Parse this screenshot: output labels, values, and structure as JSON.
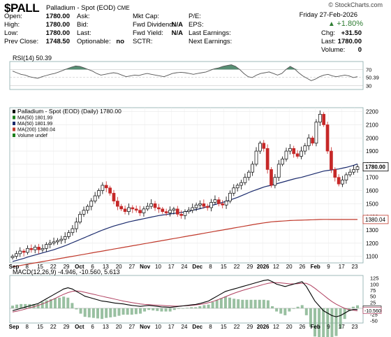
{
  "header": {
    "ticker": "$PALL",
    "name": "Palladium - Spot (EOD)",
    "exchange": "CME",
    "watermark": "© StockCharts.com",
    "date": "Friday  27-Feb-2026",
    "change_pct": "+1.80%",
    "change_pct_value": 1.8,
    "left_rows": [
      {
        "label": "Open:",
        "value": "1780.00"
      },
      {
        "label": "High:",
        "value": "1780.00"
      },
      {
        "label": "Low:",
        "value": "1780.00"
      },
      {
        "label": "Prev Close:",
        "value": "1748.50"
      }
    ],
    "mid1_rows": [
      {
        "label": "Ask:",
        "value": ""
      },
      {
        "label": "Bid:",
        "value": ""
      },
      {
        "label": "Last:",
        "value": ""
      },
      {
        "label": "Optionable:",
        "value": "no"
      }
    ],
    "mid2_rows": [
      {
        "label": "Mkt Cap:",
        "value": ""
      },
      {
        "label": "Fwd Dividend:",
        "value": "N/A"
      },
      {
        "label": "Fwd Yield:",
        "value": "N/A"
      },
      {
        "label": "SCTR:",
        "value": ""
      }
    ],
    "mid3_rows": [
      {
        "label": "P/E:",
        "value": ""
      },
      {
        "label": "EPS:",
        "value": ""
      },
      {
        "label": "Last Earnings:",
        "value": ""
      },
      {
        "label": "Next Earnings:",
        "value": ""
      }
    ],
    "right_rows": [
      {
        "label": "Chg:",
        "value": "+31.50"
      },
      {
        "label": "Last:",
        "value": "1780.00"
      },
      {
        "label": "Volume:",
        "value": "0"
      }
    ]
  },
  "rsi": {
    "label": "RSI(14) 50.39",
    "current": "50.39",
    "ticks": [
      "70",
      "50.39",
      "30"
    ],
    "values": [
      66,
      62,
      58,
      56,
      52,
      50,
      48,
      52,
      55,
      58,
      60,
      64,
      68,
      72,
      76,
      79,
      78,
      74,
      70,
      66,
      60,
      56,
      58,
      60,
      62,
      60,
      56,
      52,
      54,
      56,
      55,
      58,
      60,
      58,
      56,
      54,
      52,
      56,
      60,
      62,
      63,
      62,
      60,
      58,
      60,
      62,
      64,
      68,
      72,
      74,
      78,
      80,
      82,
      78,
      70,
      60,
      52,
      50,
      56,
      60,
      62,
      64,
      60,
      56,
      60,
      70,
      78,
      72,
      62,
      54,
      48,
      42,
      46,
      52,
      56,
      58,
      54,
      52,
      54,
      56,
      54,
      50,
      52
    ]
  },
  "price": {
    "legend": [
      {
        "text": "Palladium - Spot (EOD) (Daily) 1780.00",
        "color": "#000000"
      },
      {
        "text": "MA(50) 1801.99",
        "color": "#1a7f1a"
      },
      {
        "text": "MA(50) 1801.99",
        "color": "#1a2a6c"
      },
      {
        "text": "MA(200) 1380.04",
        "color": "#c0392b"
      },
      {
        "text": "Volume undef",
        "color": "#1a7f1a"
      }
    ],
    "yticks": [
      "2200",
      "2100",
      "2000",
      "1900",
      "1800",
      "1700",
      "1600",
      "1500",
      "1400",
      "1300",
      "1200",
      "1100"
    ],
    "last_label": "1780.00",
    "ma200_label": "1380.04"
  },
  "xaxis": [
    "Sep",
    "8",
    "15",
    "22",
    "29",
    "Oct",
    "6",
    "13",
    "20",
    "27",
    "Nov",
    "10",
    "17",
    "24",
    "Dec",
    "8",
    "15",
    "22",
    "29",
    "2026",
    "12",
    "20",
    "26",
    "Feb",
    "9",
    "17",
    "23"
  ],
  "macd": {
    "label": "MACD(12,26,9) -4.946, -10.560, 5.613",
    "ticks": [
      "125",
      "100",
      "75",
      "50",
      "25",
      "0",
      "-25",
      "-50"
    ],
    "values_label": [
      "-4.946",
      "-10.560"
    ]
  },
  "chart_data": {
    "type": "candlestick",
    "title": "Palladium - Spot (EOD) (Daily) 1780.00",
    "y_range": [
      1050,
      2230
    ],
    "close": [
      1100,
      1120,
      1140,
      1130,
      1160,
      1150,
      1170,
      1150,
      1160,
      1190,
      1200,
      1210,
      1220,
      1230,
      1250,
      1280,
      1310,
      1360,
      1420,
      1450,
      1480,
      1520,
      1560,
      1600,
      1640,
      1620,
      1580,
      1520,
      1480,
      1460,
      1440,
      1470,
      1460,
      1450,
      1430,
      1460,
      1480,
      1500,
      1470,
      1460,
      1440,
      1430,
      1450,
      1460,
      1420,
      1410,
      1440,
      1450,
      1470,
      1490,
      1500,
      1480,
      1470,
      1510,
      1530,
      1500,
      1490,
      1520,
      1580,
      1620,
      1640,
      1660,
      1700,
      1740,
      1800,
      1900,
      1960,
      1920,
      1760,
      1640,
      1700,
      1800,
      1840,
      1900,
      1920,
      1880,
      1860,
      1900,
      1940,
      2000,
      1960,
      2120,
      2180,
      2100,
      1900,
      1760,
      1700,
      1650,
      1680,
      1720,
      1740,
      1760,
      1780
    ],
    "ma50": [
      1060,
      1068,
      1076,
      1084,
      1094,
      1102,
      1110,
      1118,
      1126,
      1134,
      1142,
      1150,
      1160,
      1170,
      1180,
      1192,
      1204,
      1216,
      1228,
      1240,
      1252,
      1264,
      1276,
      1288,
      1300,
      1310,
      1320,
      1330,
      1338,
      1346,
      1354,
      1362,
      1368,
      1374,
      1380,
      1386,
      1392,
      1398,
      1404,
      1410,
      1414,
      1418,
      1422,
      1426,
      1430,
      1434,
      1438,
      1444,
      1450,
      1456,
      1462,
      1470,
      1478,
      1486,
      1494,
      1502,
      1510,
      1518,
      1528,
      1538,
      1548,
      1560,
      1572,
      1584,
      1596,
      1606,
      1616,
      1626,
      1634,
      1640,
      1648,
      1656,
      1664,
      1672,
      1680,
      1688,
      1694,
      1700,
      1708,
      1716,
      1724,
      1732,
      1740,
      1748,
      1752,
      1756,
      1760,
      1764,
      1770,
      1776,
      1784,
      1792,
      1801.99
    ],
    "ma200": [
      1020,
      1025,
      1030,
      1035,
      1040,
      1045,
      1050,
      1055,
      1060,
      1065,
      1070,
      1075,
      1080,
      1085,
      1090,
      1095,
      1100,
      1105,
      1110,
      1115,
      1120,
      1125,
      1130,
      1135,
      1140,
      1145,
      1150,
      1155,
      1160,
      1165,
      1170,
      1175,
      1180,
      1185,
      1190,
      1195,
      1200,
      1205,
      1210,
      1215,
      1220,
      1225,
      1230,
      1235,
      1240,
      1245,
      1250,
      1255,
      1260,
      1265,
      1270,
      1275,
      1280,
      1285,
      1290,
      1295,
      1300,
      1305,
      1310,
      1315,
      1320,
      1325,
      1330,
      1335,
      1340,
      1345,
      1350,
      1354,
      1358,
      1362,
      1364,
      1366,
      1368,
      1370,
      1372,
      1373,
      1374,
      1375,
      1376,
      1377,
      1378,
      1379,
      1380,
      1380.5,
      1380.4,
      1380.3,
      1380.2,
      1380.1,
      1380.1,
      1380.0,
      1380.0,
      1380.04,
      1380.04
    ],
    "macd_line": [
      -10,
      -5,
      0,
      5,
      10,
      15,
      20,
      30,
      40,
      50,
      60,
      70,
      80,
      85,
      80,
      70,
      60,
      50,
      45,
      40,
      35,
      30,
      28,
      25,
      22,
      20,
      18,
      15,
      12,
      10,
      8,
      10,
      12,
      10,
      8,
      6,
      5,
      4,
      6,
      8,
      10,
      12,
      14,
      16,
      20,
      25,
      30,
      40,
      50,
      60,
      70,
      75,
      80,
      85,
      90,
      95,
      100,
      105,
      110,
      115,
      118,
      110,
      100,
      95,
      90,
      95,
      100,
      105,
      110,
      90,
      60,
      30,
      10,
      -10,
      -20,
      -30,
      -35,
      -30,
      -20,
      -10,
      -5,
      -4.946
    ],
    "signal_line": [
      -15,
      -12,
      -8,
      -3,
      2,
      7,
      12,
      18,
      25,
      33,
      41,
      50,
      58,
      65,
      70,
      72,
      70,
      66,
      62,
      58,
      54,
      50,
      46,
      42,
      38,
      34,
      30,
      27,
      24,
      21,
      18,
      16,
      15,
      14,
      13,
      12,
      11,
      10,
      9,
      9,
      10,
      11,
      12,
      14,
      16,
      19,
      23,
      28,
      34,
      41,
      48,
      55,
      62,
      68,
      74,
      79,
      84,
      89,
      94,
      99,
      103,
      106,
      106,
      105,
      103,
      101,
      101,
      102,
      104,
      103,
      95,
      83,
      69,
      55,
      41,
      28,
      17,
      8,
      0,
      -5,
      -8,
      -10.56
    ],
    "xlabel": "",
    "ylabel": ""
  }
}
